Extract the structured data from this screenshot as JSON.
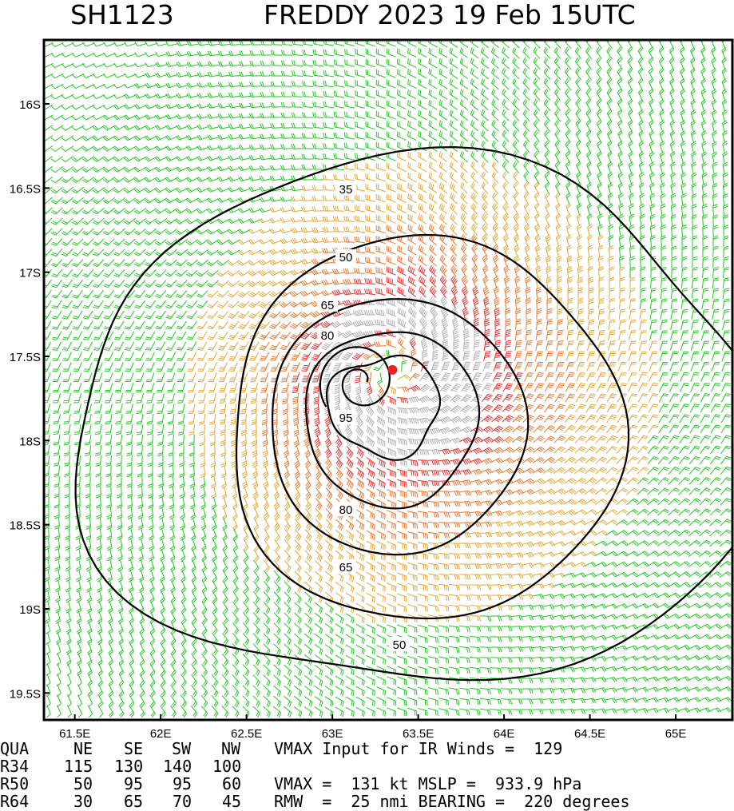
{
  "title": {
    "storm_id": "SH1123",
    "storm_info": "FREDDY 2023 19 Feb 15UTC"
  },
  "chart_data": {
    "type": "contour",
    "lat_ticks": [
      "16S",
      "16.5S",
      "17S",
      "17.5S",
      "18S",
      "18.5S",
      "19S",
      "19.5S"
    ],
    "lon_ticks": [
      "61.5E",
      "62E",
      "62.5E",
      "63E",
      "63.5E",
      "64E",
      "64.5E",
      "65E"
    ],
    "lat_values": [
      -16.0,
      -16.5,
      -17.0,
      -17.5,
      -18.0,
      -18.5,
      -19.0,
      -19.5
    ],
    "lon_values": [
      61.5,
      62.0,
      62.5,
      63.0,
      63.5,
      64.0,
      64.5,
      65.0
    ],
    "lon_range": [
      61.32,
      65.33
    ],
    "lat_range": [
      -19.66,
      -15.62
    ],
    "contour_levels_kt": [
      35,
      50,
      65,
      80,
      95
    ],
    "contour_labels": [
      "35",
      "50",
      "65",
      "80",
      "95",
      "80",
      "65",
      "50"
    ],
    "center": {
      "lon": 63.35,
      "lat": -17.58
    },
    "wind_colors": {
      "under_50kt": "#22cc22",
      "50_to_64kt": "#e8a838",
      "64_to_80kt": "#f07830",
      "80_to_95kt": "#ee3030",
      "over_95kt": "#b0b0b0",
      "contour": "#000000",
      "center_marker": "#ee2020"
    }
  },
  "info": {
    "header": [
      "QUA",
      "NE",
      "SE",
      "SW",
      "NW"
    ],
    "rows": [
      {
        "label": "R34",
        "values": [
          "115",
          "130",
          "140",
          "100"
        ]
      },
      {
        "label": "R50",
        "values": [
          "50",
          "95",
          "95",
          "60"
        ]
      },
      {
        "label": "R64",
        "values": [
          "30",
          "65",
          "70",
          "45"
        ]
      }
    ],
    "vmax_input": "VMAX Input for IR Winds =  129",
    "vmax_line": "VMAX =  131 kt MSLP =  933.9 hPa",
    "rmw_line": "RMW  =  25 nmi BEARING =  220 degrees"
  }
}
